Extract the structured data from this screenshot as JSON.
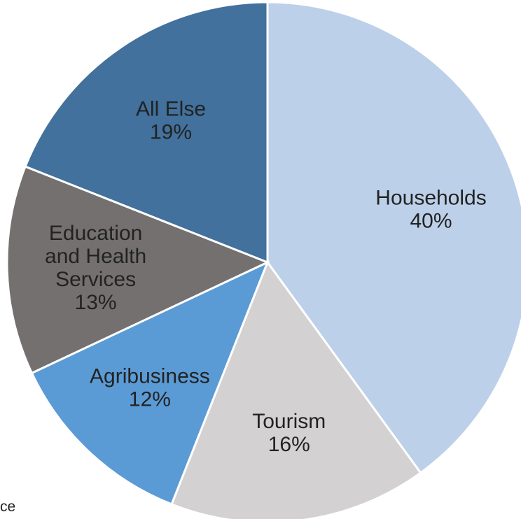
{
  "chart_data": {
    "type": "pie",
    "start_angle_deg": 0,
    "direction": "clockwise",
    "slices": [
      {
        "label_lines": [
          "Households"
        ],
        "value": 40,
        "display": "40%",
        "color": "#bdd0e9",
        "label_color": "#222222"
      },
      {
        "label_lines": [
          "Tourism"
        ],
        "value": 16,
        "display": "16%",
        "color": "#d3d1d1",
        "label_color": "#222222"
      },
      {
        "label_lines": [
          "Agribusiness"
        ],
        "value": 12,
        "display": "12%",
        "color": "#5b9bd5",
        "label_color": "#222222"
      },
      {
        "label_lines": [
          "Education",
          "and Health",
          "Services"
        ],
        "value": 13,
        "display": "13%",
        "color": "#747070",
        "label_color": "#ffffff"
      },
      {
        "label_lines": [
          "All Else"
        ],
        "value": 19,
        "display": "19%",
        "color": "#41719c",
        "label_color": "#ffffff"
      }
    ],
    "border_color": "#ffffff"
  },
  "footer": {
    "fragment_text": "ce"
  }
}
